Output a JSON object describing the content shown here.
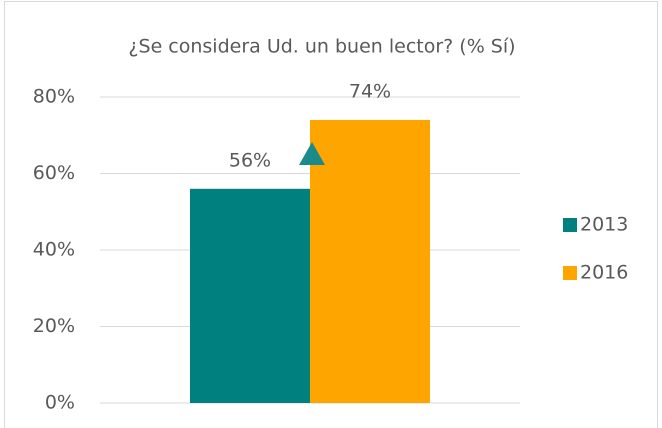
{
  "chart_data": {
    "type": "bar",
    "title": "¿Se considera Ud. un buen lector? (% Sí)",
    "categories": [
      null
    ],
    "series": [
      {
        "name": "2013",
        "color": "#00807f",
        "values": [
          56
        ],
        "value_labels": [
          "56%"
        ]
      },
      {
        "name": "2016",
        "color": "#ffa500",
        "values": [
          74
        ],
        "value_labels": [
          "74%"
        ]
      }
    ],
    "ylim": [
      0,
      80
    ],
    "yticks": [
      {
        "value": 0,
        "label": "0%"
      },
      {
        "value": 20,
        "label": "20%"
      },
      {
        "value": 40,
        "label": "40%"
      },
      {
        "value": 60,
        "label": "60%"
      },
      {
        "value": 80,
        "label": "80%"
      }
    ],
    "grid": true,
    "legend": "right"
  }
}
